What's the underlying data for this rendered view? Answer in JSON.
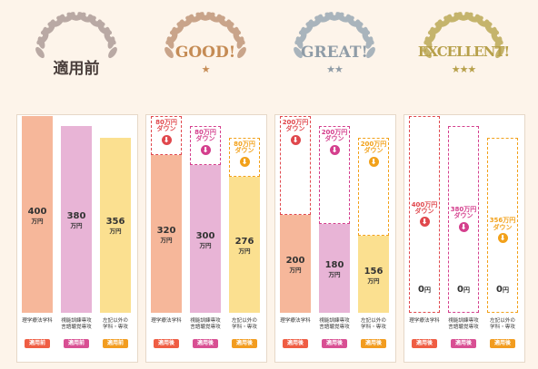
{
  "colors": {
    "background": "#fdf4ea",
    "series": [
      "#f6b79a",
      "#e8b4d6",
      "#fbe090"
    ],
    "down_colors": [
      "#e0484d",
      "#d43f8d",
      "#f2a11a"
    ],
    "tag_colors": [
      "#ef5d43",
      "#d84f93",
      "#f29c1f"
    ],
    "wreath_colors": [
      "#b9a9a4",
      "#c9a48a",
      "#a9b4bc",
      "#c5b46c"
    ],
    "heading_colors": [
      "#4a3f3c",
      "#c58b54",
      "#8f9ca7",
      "#b7a04a"
    ]
  },
  "chart_data": {
    "type": "bar",
    "categories": [
      "理学療法学科",
      "視能訓練専攻\n言語聴覚専攻",
      "左記以外の\n学科・専攻"
    ],
    "ylim": [
      0,
      400
    ],
    "unit": "万円",
    "panels": [
      {
        "heading": "適用前",
        "stars": "",
        "tag": "適用前",
        "values": [
          400,
          380,
          356
        ],
        "reductions": [
          null,
          null,
          null
        ]
      },
      {
        "heading": "GOOD!",
        "stars": "★",
        "tag": "適用後",
        "values": [
          320,
          300,
          276
        ],
        "reductions": [
          80,
          80,
          80
        ]
      },
      {
        "heading": "GREAT!",
        "stars": "★★",
        "tag": "適用後",
        "values": [
          200,
          180,
          156
        ],
        "reductions": [
          200,
          200,
          200
        ]
      },
      {
        "heading": "EXCELLENT!",
        "stars": "★★★",
        "tag": "適用後",
        "values": [
          0,
          0,
          0
        ],
        "reductions": [
          400,
          380,
          356
        ]
      }
    ],
    "down_label": "ダウン"
  }
}
